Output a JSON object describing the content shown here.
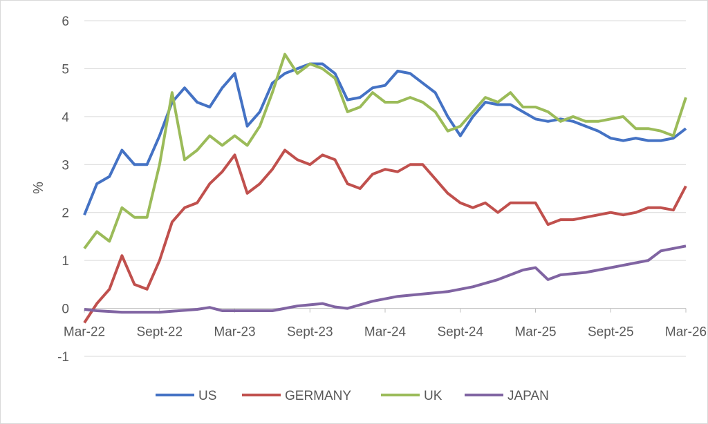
{
  "chart_data": {
    "type": "line",
    "ylabel": "%",
    "ylim": [
      -1,
      6
    ],
    "yticks": [
      -1,
      0,
      1,
      2,
      3,
      4,
      5,
      6
    ],
    "xlim": [
      "2022-03",
      "2026-03"
    ],
    "xticks": [
      {
        "date": "2022-03",
        "label": "Mar-22"
      },
      {
        "date": "2022-09",
        "label": "Sept-22"
      },
      {
        "date": "2023-03",
        "label": "Mar-23"
      },
      {
        "date": "2023-09",
        "label": "Sept-23"
      },
      {
        "date": "2024-03",
        "label": "Mar-24"
      },
      {
        "date": "2024-09",
        "label": "Sept-24"
      },
      {
        "date": "2025-03",
        "label": "Mar-25"
      },
      {
        "date": "2025-09",
        "label": "Sept-25"
      },
      {
        "date": "2026-03",
        "label": "Mar-26"
      }
    ],
    "grid": true,
    "legend_position": "bottom",
    "series": [
      {
        "name": "US",
        "color": "#4472C4",
        "points": [
          [
            "2022-03",
            1.95
          ],
          [
            "2022-04",
            2.6
          ],
          [
            "2022-05",
            2.75
          ],
          [
            "2022-06",
            3.3
          ],
          [
            "2022-07",
            3.0
          ],
          [
            "2022-08",
            3.0
          ],
          [
            "2022-09",
            3.6
          ],
          [
            "2022-10",
            4.3
          ],
          [
            "2022-11",
            4.6
          ],
          [
            "2022-12",
            4.3
          ],
          [
            "2023-01",
            4.2
          ],
          [
            "2023-02",
            4.6
          ],
          [
            "2023-03",
            4.9
          ],
          [
            "2023-04",
            3.8
          ],
          [
            "2023-05",
            4.1
          ],
          [
            "2023-06",
            4.7
          ],
          [
            "2023-07",
            4.9
          ],
          [
            "2023-08",
            5.0
          ],
          [
            "2023-09",
            5.1
          ],
          [
            "2023-10",
            5.1
          ],
          [
            "2023-11",
            4.9
          ],
          [
            "2023-12",
            4.35
          ],
          [
            "2024-01",
            4.4
          ],
          [
            "2024-02",
            4.6
          ],
          [
            "2024-03",
            4.65
          ],
          [
            "2024-04",
            4.95
          ],
          [
            "2024-05",
            4.9
          ],
          [
            "2024-06",
            4.7
          ],
          [
            "2024-07",
            4.5
          ],
          [
            "2024-08",
            4.0
          ],
          [
            "2024-09",
            3.6
          ],
          [
            "2024-10",
            4.0
          ],
          [
            "2024-11",
            4.3
          ],
          [
            "2024-12",
            4.25
          ],
          [
            "2025-01",
            4.25
          ],
          [
            "2025-02",
            4.1
          ],
          [
            "2025-03",
            3.95
          ],
          [
            "2025-04",
            3.9
          ],
          [
            "2025-05",
            3.95
          ],
          [
            "2025-06",
            3.9
          ],
          [
            "2025-07",
            3.8
          ],
          [
            "2025-08",
            3.7
          ],
          [
            "2025-09",
            3.55
          ],
          [
            "2025-10",
            3.5
          ],
          [
            "2025-11",
            3.55
          ],
          [
            "2025-12",
            3.5
          ],
          [
            "2026-01",
            3.5
          ],
          [
            "2026-02",
            3.55
          ],
          [
            "2026-03",
            3.75
          ]
        ]
      },
      {
        "name": "GERMANY",
        "color": "#C0504D",
        "points": [
          [
            "2022-03",
            -0.3
          ],
          [
            "2022-04",
            0.1
          ],
          [
            "2022-05",
            0.4
          ],
          [
            "2022-06",
            1.1
          ],
          [
            "2022-07",
            0.5
          ],
          [
            "2022-08",
            0.4
          ],
          [
            "2022-09",
            1.0
          ],
          [
            "2022-10",
            1.8
          ],
          [
            "2022-11",
            2.1
          ],
          [
            "2022-12",
            2.2
          ],
          [
            "2023-01",
            2.6
          ],
          [
            "2023-02",
            2.85
          ],
          [
            "2023-03",
            3.2
          ],
          [
            "2023-04",
            2.4
          ],
          [
            "2023-05",
            2.6
          ],
          [
            "2023-06",
            2.9
          ],
          [
            "2023-07",
            3.3
          ],
          [
            "2023-08",
            3.1
          ],
          [
            "2023-09",
            3.0
          ],
          [
            "2023-10",
            3.2
          ],
          [
            "2023-11",
            3.1
          ],
          [
            "2023-12",
            2.6
          ],
          [
            "2024-01",
            2.5
          ],
          [
            "2024-02",
            2.8
          ],
          [
            "2024-03",
            2.9
          ],
          [
            "2024-04",
            2.85
          ],
          [
            "2024-05",
            3.0
          ],
          [
            "2024-06",
            3.0
          ],
          [
            "2024-07",
            2.7
          ],
          [
            "2024-08",
            2.4
          ],
          [
            "2024-09",
            2.2
          ],
          [
            "2024-10",
            2.1
          ],
          [
            "2024-11",
            2.2
          ],
          [
            "2024-12",
            2.0
          ],
          [
            "2025-01",
            2.2
          ],
          [
            "2025-02",
            2.2
          ],
          [
            "2025-03",
            2.2
          ],
          [
            "2025-04",
            1.75
          ],
          [
            "2025-05",
            1.85
          ],
          [
            "2025-06",
            1.85
          ],
          [
            "2025-07",
            1.9
          ],
          [
            "2025-08",
            1.95
          ],
          [
            "2025-09",
            2.0
          ],
          [
            "2025-10",
            1.95
          ],
          [
            "2025-11",
            2.0
          ],
          [
            "2025-12",
            2.1
          ],
          [
            "2026-01",
            2.1
          ],
          [
            "2026-02",
            2.05
          ],
          [
            "2026-03",
            2.55
          ]
        ]
      },
      {
        "name": "UK",
        "color": "#9BBB59",
        "points": [
          [
            "2022-03",
            1.25
          ],
          [
            "2022-04",
            1.6
          ],
          [
            "2022-05",
            1.4
          ],
          [
            "2022-06",
            2.1
          ],
          [
            "2022-07",
            1.9
          ],
          [
            "2022-08",
            1.9
          ],
          [
            "2022-09",
            3.0
          ],
          [
            "2022-10",
            4.5
          ],
          [
            "2022-11",
            3.1
          ],
          [
            "2022-12",
            3.3
          ],
          [
            "2023-01",
            3.6
          ],
          [
            "2023-02",
            3.4
          ],
          [
            "2023-03",
            3.6
          ],
          [
            "2023-04",
            3.4
          ],
          [
            "2023-05",
            3.8
          ],
          [
            "2023-06",
            4.5
          ],
          [
            "2023-07",
            5.3
          ],
          [
            "2023-08",
            4.9
          ],
          [
            "2023-09",
            5.1
          ],
          [
            "2023-10",
            5.0
          ],
          [
            "2023-11",
            4.8
          ],
          [
            "2023-12",
            4.1
          ],
          [
            "2024-01",
            4.2
          ],
          [
            "2024-02",
            4.5
          ],
          [
            "2024-03",
            4.3
          ],
          [
            "2024-04",
            4.3
          ],
          [
            "2024-05",
            4.4
          ],
          [
            "2024-06",
            4.3
          ],
          [
            "2024-07",
            4.1
          ],
          [
            "2024-08",
            3.7
          ],
          [
            "2024-09",
            3.8
          ],
          [
            "2024-10",
            4.1
          ],
          [
            "2024-11",
            4.4
          ],
          [
            "2024-12",
            4.3
          ],
          [
            "2025-01",
            4.5
          ],
          [
            "2025-02",
            4.2
          ],
          [
            "2025-03",
            4.2
          ],
          [
            "2025-04",
            4.1
          ],
          [
            "2025-05",
            3.9
          ],
          [
            "2025-06",
            4.0
          ],
          [
            "2025-07",
            3.9
          ],
          [
            "2025-08",
            3.9
          ],
          [
            "2025-09",
            3.95
          ],
          [
            "2025-10",
            4.0
          ],
          [
            "2025-11",
            3.75
          ],
          [
            "2025-12",
            3.75
          ],
          [
            "2026-01",
            3.7
          ],
          [
            "2026-02",
            3.6
          ],
          [
            "2026-03",
            4.4
          ]
        ]
      },
      {
        "name": "JAPAN",
        "color": "#8064A2",
        "points": [
          [
            "2022-03",
            -0.02
          ],
          [
            "2022-04",
            -0.05
          ],
          [
            "2022-06",
            -0.08
          ],
          [
            "2022-09",
            -0.08
          ],
          [
            "2022-12",
            -0.02
          ],
          [
            "2023-01",
            0.02
          ],
          [
            "2023-02",
            -0.05
          ],
          [
            "2023-04",
            -0.05
          ],
          [
            "2023-06",
            -0.05
          ],
          [
            "2023-08",
            0.05
          ],
          [
            "2023-10",
            0.1
          ],
          [
            "2023-11",
            0.03
          ],
          [
            "2023-12",
            0.0
          ],
          [
            "2024-02",
            0.15
          ],
          [
            "2024-04",
            0.25
          ],
          [
            "2024-06",
            0.3
          ],
          [
            "2024-08",
            0.35
          ],
          [
            "2024-10",
            0.45
          ],
          [
            "2024-12",
            0.6
          ],
          [
            "2025-02",
            0.8
          ],
          [
            "2025-03",
            0.85
          ],
          [
            "2025-04",
            0.6
          ],
          [
            "2025-05",
            0.7
          ],
          [
            "2025-07",
            0.75
          ],
          [
            "2025-09",
            0.85
          ],
          [
            "2025-11",
            0.95
          ],
          [
            "2025-12",
            1.0
          ],
          [
            "2026-01",
            1.2
          ],
          [
            "2026-02",
            1.25
          ],
          [
            "2026-03",
            1.3
          ]
        ]
      }
    ]
  }
}
